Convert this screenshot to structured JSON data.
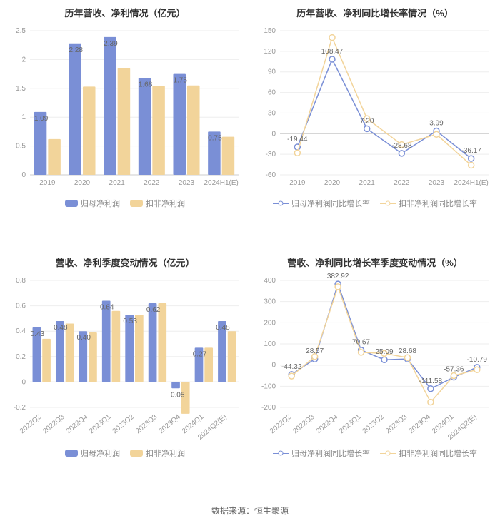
{
  "source_label": "数据来源：恒生聚源",
  "colors": {
    "series1": "#7a8fd6",
    "series2": "#f2d49a",
    "grid": "#eeeeee",
    "axis": "#cccccc",
    "text": "#999999",
    "label": "#666666"
  },
  "chart_tl": {
    "type": "bar",
    "title": "历年营收、净利情况（亿元）",
    "categories": [
      "2019",
      "2020",
      "2021",
      "2022",
      "2023",
      "2024H1(E)"
    ],
    "series": [
      {
        "name": "归母净利润",
        "color": "#7a8fd6",
        "values": [
          1.09,
          2.28,
          2.39,
          1.68,
          1.75,
          0.75
        ]
      },
      {
        "name": "扣非净利润",
        "color": "#f2d49a",
        "values": [
          0.62,
          1.53,
          1.85,
          1.54,
          1.55,
          0.66
        ]
      }
    ],
    "label_series_index": 0,
    "ylim": [
      0,
      2.5
    ],
    "ytick_step": 0.5,
    "bar_width": 0.36,
    "label_fontsize": 10,
    "title_fontsize": 13
  },
  "chart_tr": {
    "type": "line",
    "title": "历年营收、净利同比增长率情况（%）",
    "categories": [
      "2019",
      "2020",
      "2021",
      "2022",
      "2023",
      "2024H1(E)"
    ],
    "series": [
      {
        "name": "归母净利润同比增长率",
        "color": "#7a8fd6",
        "values": [
          -19.44,
          108.47,
          7.2,
          -28.68,
          3.99,
          -36.17
        ]
      },
      {
        "name": "扣非净利润同比增长率",
        "color": "#f2d49a",
        "values": [
          -28.0,
          140.0,
          22.0,
          -16.0,
          -1.0,
          -46.0
        ]
      }
    ],
    "label_series_index": 0,
    "ylim": [
      -60,
      150
    ],
    "ytick_step": 30,
    "marker_size": 4,
    "line_width": 1.5,
    "title_fontsize": 13
  },
  "chart_bl": {
    "type": "bar",
    "title": "营收、净利季度变动情况（亿元）",
    "categories": [
      "2022Q2",
      "2022Q3",
      "2022Q4",
      "2023Q1",
      "2023Q2",
      "2023Q3",
      "2023Q4",
      "2024Q1",
      "2024Q2(E)"
    ],
    "rotate_xlabels": true,
    "series": [
      {
        "name": "归母净利润",
        "color": "#7a8fd6",
        "values": [
          0.43,
          0.48,
          0.4,
          0.64,
          0.53,
          0.62,
          -0.05,
          0.27,
          0.48
        ]
      },
      {
        "name": "扣非净利润",
        "color": "#f2d49a",
        "values": [
          0.34,
          0.46,
          0.39,
          0.56,
          0.53,
          0.62,
          -0.25,
          0.27,
          0.4
        ]
      }
    ],
    "label_series_index": 0,
    "ylim": [
      -0.2,
      0.8
    ],
    "ytick_step": 0.2,
    "bar_width": 0.36,
    "title_fontsize": 13
  },
  "chart_br": {
    "type": "line",
    "title": "营收、净利同比增长率季度变动情况（%）",
    "categories": [
      "2022Q2",
      "2022Q3",
      "2022Q4",
      "2023Q1",
      "2023Q2",
      "2023Q3",
      "2023Q4",
      "2024Q1",
      "2024Q2(E)"
    ],
    "rotate_xlabels": true,
    "series": [
      {
        "name": "归母净利润同比增长率",
        "color": "#7a8fd6",
        "values": [
          -44.32,
          28.57,
          382.92,
          70.67,
          25.09,
          28.68,
          -111.58,
          -57.36,
          -10.79
        ]
      },
      {
        "name": "扣非净利润同比增长率",
        "color": "#f2d49a",
        "values": [
          -52.0,
          40.0,
          370.0,
          60.0,
          55.0,
          35.0,
          -175.0,
          -50.0,
          -22.0
        ]
      }
    ],
    "label_series_index": 0,
    "ylim": [
      -200,
      400
    ],
    "ytick_step": 100,
    "marker_size": 4,
    "line_width": 1.5,
    "title_fontsize": 13
  }
}
